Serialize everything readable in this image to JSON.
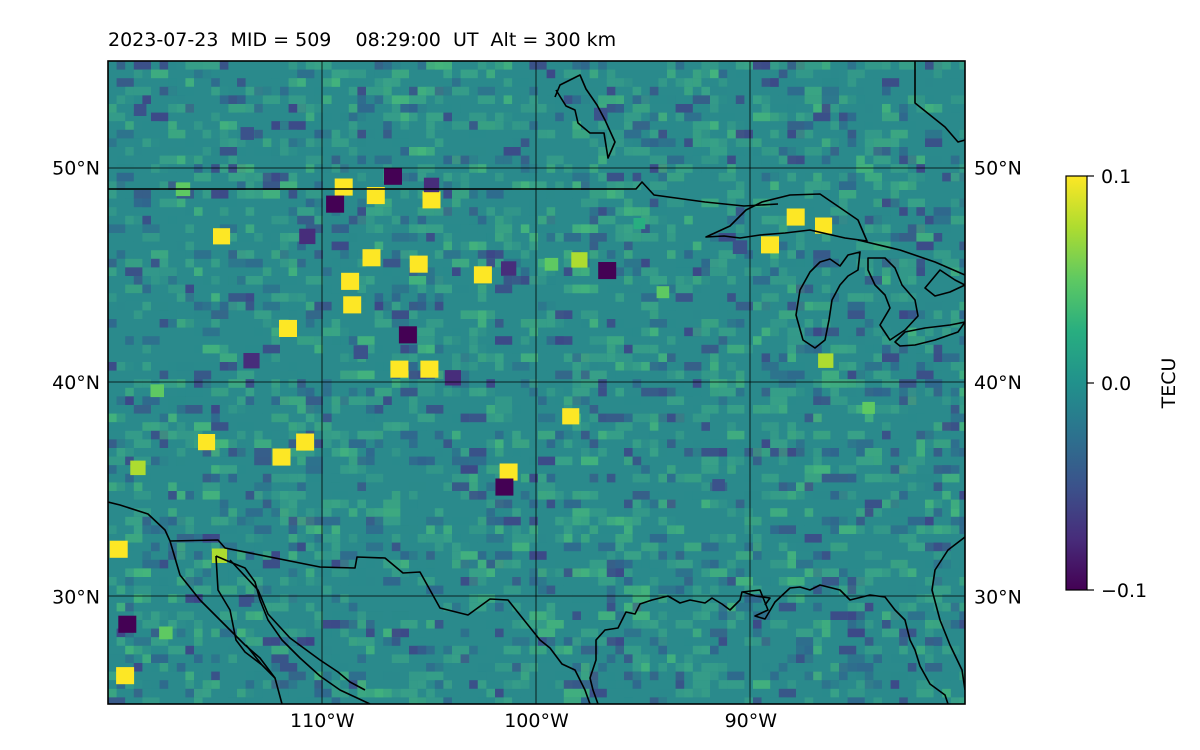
{
  "title": "2023-07-23  MID = 509    08:29:00  UT  Alt = 300 km",
  "map": {
    "lon_range": [
      -120,
      -80
    ],
    "lat_range": [
      25,
      55
    ],
    "lat_ticks": [
      {
        "lat": 50,
        "label": "50°N"
      },
      {
        "lat": 40,
        "label": "40°N"
      },
      {
        "lat": 30,
        "label": "30°N"
      }
    ],
    "lon_ticks": [
      {
        "lon": -110,
        "label": "110°W"
      },
      {
        "lon": -100,
        "label": "100°W"
      },
      {
        "lon": -90,
        "label": "90°W"
      }
    ],
    "gridlines": true,
    "field_colors": {
      "base": "#2a8a8c",
      "light": "#3aa487",
      "green": "#45b67c",
      "dark": "#30648e",
      "purple": "#3f4188",
      "deep": "#440154",
      "yellow": "#fde725",
      "yellowgreen": "#b5de2b"
    },
    "anomalies": [
      {
        "lon": -107.5,
        "lat": 48.7,
        "value": 0.1
      },
      {
        "lon": -109,
        "lat": 49.1,
        "value": 0.1
      },
      {
        "lon": -104.9,
        "lat": 48.5,
        "value": 0.1
      },
      {
        "lon": -116.5,
        "lat": 49.0,
        "value": 0.06
      },
      {
        "lon": -106.7,
        "lat": 49.6,
        "value": -0.1
      },
      {
        "lon": -107.7,
        "lat": 45.8,
        "value": 0.1
      },
      {
        "lon": -105.5,
        "lat": 45.5,
        "value": 0.1
      },
      {
        "lon": -102.5,
        "lat": 45.0,
        "value": 0.1
      },
      {
        "lon": -108.7,
        "lat": 44.7,
        "value": 0.1
      },
      {
        "lon": -108.6,
        "lat": 43.6,
        "value": 0.1
      },
      {
        "lon": -110.7,
        "lat": 46.8,
        "value": -0.08
      },
      {
        "lon": -109.4,
        "lat": 48.3,
        "value": -0.1
      },
      {
        "lon": -111.6,
        "lat": 42.5,
        "value": 0.1
      },
      {
        "lon": -114.7,
        "lat": 46.8,
        "value": 0.09
      },
      {
        "lon": -106,
        "lat": 42.2,
        "value": -0.1
      },
      {
        "lon": -106.4,
        "lat": 40.6,
        "value": 0.1
      },
      {
        "lon": -105,
        "lat": 40.6,
        "value": 0.1
      },
      {
        "lon": -96.7,
        "lat": 45.2,
        "value": -0.1
      },
      {
        "lon": -98,
        "lat": 45.7,
        "value": 0.08
      },
      {
        "lon": -99.3,
        "lat": 45.5,
        "value": 0.05
      },
      {
        "lon": -101.3,
        "lat": 45.3,
        "value": -0.07
      },
      {
        "lon": -110.8,
        "lat": 37.2,
        "value": 0.1
      },
      {
        "lon": -111.9,
        "lat": 36.5,
        "value": 0.1
      },
      {
        "lon": -101.3,
        "lat": 35.8,
        "value": 0.1
      },
      {
        "lon": -101.5,
        "lat": 35.1,
        "value": -0.1
      },
      {
        "lon": -108.2,
        "lat": 41.4,
        "value": -0.06
      },
      {
        "lon": -103.9,
        "lat": 40.2,
        "value": -0.08
      },
      {
        "lon": -113.3,
        "lat": 41.0,
        "value": -0.08
      },
      {
        "lon": -118.6,
        "lat": 36.0,
        "value": 0.07
      },
      {
        "lon": -115.4,
        "lat": 37.2,
        "value": 0.09
      },
      {
        "lon": -98.4,
        "lat": 38.4,
        "value": 0.09
      },
      {
        "lon": -87.9,
        "lat": 47.7,
        "value": 0.1
      },
      {
        "lon": -89.1,
        "lat": 46.4,
        "value": 0.1
      },
      {
        "lon": -86.6,
        "lat": 47.3,
        "value": 0.09
      },
      {
        "lon": -86.5,
        "lat": 41.0,
        "value": 0.07
      },
      {
        "lon": -90.5,
        "lat": 46.3,
        "value": -0.06
      },
      {
        "lon": -119.5,
        "lat": 32.2,
        "value": 0.1
      },
      {
        "lon": -114.8,
        "lat": 31.9,
        "value": 0.07
      },
      {
        "lon": -119.1,
        "lat": 28.7,
        "value": -0.1
      },
      {
        "lon": -119.2,
        "lat": 26.3,
        "value": 0.1
      },
      {
        "lon": -117.3,
        "lat": 28.3,
        "value": 0.05
      },
      {
        "lon": -104.9,
        "lat": 49.2,
        "value": -0.07
      },
      {
        "lon": -94.1,
        "lat": 44.2,
        "value": 0.04
      },
      {
        "lon": -113.5,
        "lat": 51.6,
        "value": -0.05
      },
      {
        "lon": -97,
        "lat": 52.5,
        "value": -0.05
      },
      {
        "lon": -118.5,
        "lat": 52.7,
        "value": -0.04
      },
      {
        "lon": -84.5,
        "lat": 38.8,
        "value": 0.04
      },
      {
        "lon": -91.5,
        "lat": 35.2,
        "value": -0.04
      },
      {
        "lon": -113.6,
        "lat": 29.8,
        "value": -0.04
      },
      {
        "lon": -117.7,
        "lat": 39.6,
        "value": 0.05
      },
      {
        "lon": -95.2,
        "lat": 47.4,
        "value": 0.03
      }
    ]
  },
  "colorbar": {
    "label": "TECU",
    "min": -0.1,
    "max": 0.1,
    "ticks": [
      {
        "value": 0.1,
        "label": "0.1"
      },
      {
        "value": 0.0,
        "label": "0.0"
      },
      {
        "value": -0.1,
        "label": "−0.1"
      }
    ],
    "colormap": "viridis"
  }
}
